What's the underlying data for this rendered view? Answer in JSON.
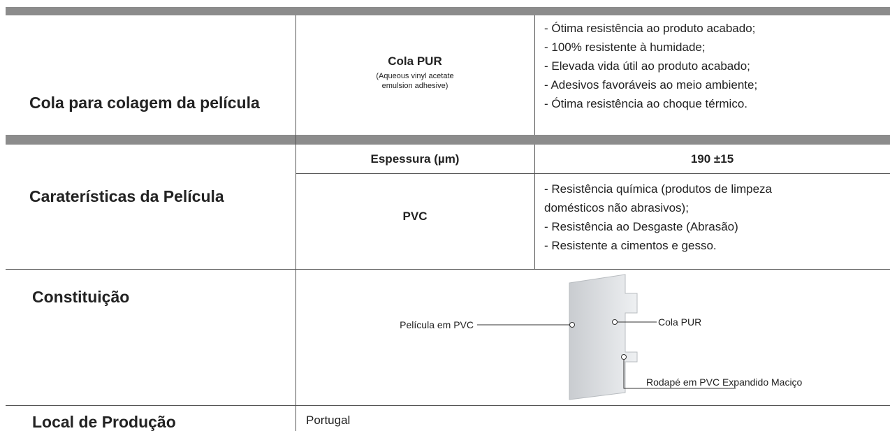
{
  "adhesive": {
    "label": "Cola para colagem da película",
    "name": "Cola PUR",
    "note": [
      "(Aqueous vinyl acetate",
      "emulsion adhesive)"
    ],
    "features": [
      "- Ótima resistência ao produto acabado;",
      "- 100% resistente à humidade;",
      "- Elevada vida útil ao produto acabado;",
      "- Adesivos favoráveis ao meio ambiente;",
      "- Ótima resistência ao choque térmico."
    ]
  },
  "film": {
    "label": "Caraterísticas da Película",
    "thickness_label": "Espessura (µm)",
    "thickness_value": "190 ±15",
    "material": "PVC",
    "features": [
      "- Resistência química (produtos de limpeza",
      "domésticos não abrasivos);",
      "- Resistência ao Desgaste (Abrasão)",
      "- Resistente a cimentos e gesso."
    ]
  },
  "composition": {
    "label": "Constituição",
    "callouts": [
      "Película em PVC",
      "Cola PUR",
      "Rodapé em PVC Expandido Maciço"
    ]
  },
  "origin": {
    "label": "Local de Produção",
    "value": "Portugal"
  }
}
